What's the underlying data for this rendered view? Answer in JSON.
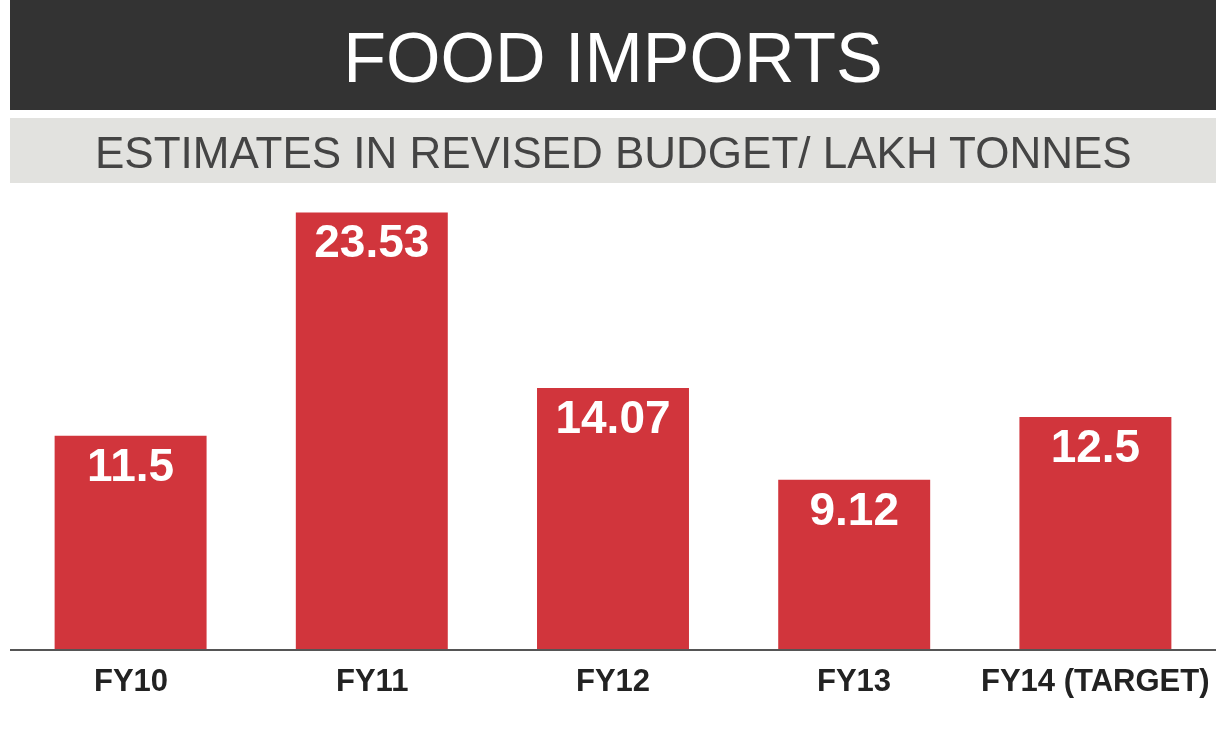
{
  "chart_data": {
    "type": "bar",
    "title": "FOOD IMPORTS",
    "subtitle": "ESTIMATES IN REVISED BUDGET/ LAKH TONNES",
    "categories": [
      "FY10",
      "FY11",
      "FY12",
      "FY13",
      "FY14 (TARGET)"
    ],
    "values": [
      11.5,
      23.53,
      14.07,
      9.12,
      12.5
    ],
    "color": "#d1353c",
    "data_labels": true,
    "grid": false,
    "legend": false
  }
}
